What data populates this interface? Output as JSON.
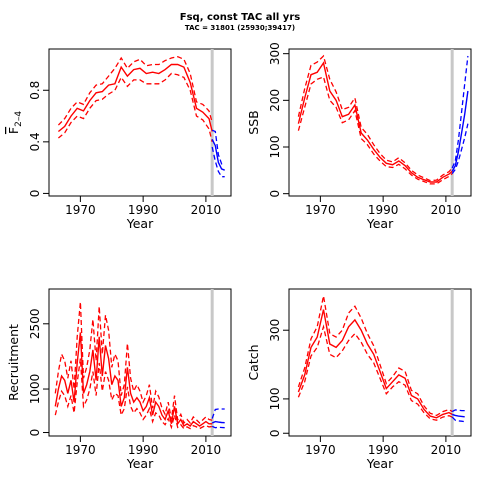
{
  "title": "Fsq, const TAC all yrs",
  "subtitle": "TAC = 31801 (25930;39417)",
  "chart_data": [
    {
      "type": "line",
      "panel": "F",
      "xlabel": "Year",
      "ylabel": "F2-4",
      "ylabel_main": "F",
      "ylabel_sub": "2–4",
      "xlim": [
        1960,
        2018
      ],
      "ylim": [
        -0.02,
        1.12
      ],
      "xticks": [
        1970,
        1990,
        2010
      ],
      "yticks": [
        0.0,
        0.4,
        0.8
      ],
      "vline": 2012,
      "series": [
        {
          "role": "historical",
          "color": "#ff0000",
          "years": [
            1963,
            1965,
            1967,
            1969,
            1971,
            1973,
            1975,
            1977,
            1979,
            1981,
            1983,
            1985,
            1987,
            1989,
            1991,
            1993,
            1995,
            1997,
            1999,
            2001,
            2003,
            2005,
            2007,
            2009,
            2011,
            2012
          ],
          "median": [
            0.48,
            0.52,
            0.6,
            0.66,
            0.64,
            0.72,
            0.78,
            0.79,
            0.84,
            0.85,
            0.98,
            0.91,
            0.96,
            0.97,
            0.93,
            0.94,
            0.93,
            0.96,
            1.0,
            1.0,
            0.98,
            0.86,
            0.66,
            0.63,
            0.58,
            0.48
          ],
          "low": [
            0.43,
            0.47,
            0.55,
            0.6,
            0.58,
            0.66,
            0.72,
            0.73,
            0.77,
            0.8,
            0.9,
            0.83,
            0.88,
            0.88,
            0.85,
            0.85,
            0.85,
            0.88,
            0.93,
            0.92,
            0.9,
            0.8,
            0.6,
            0.57,
            0.5,
            0.4
          ],
          "high": [
            0.53,
            0.58,
            0.66,
            0.71,
            0.69,
            0.78,
            0.84,
            0.85,
            0.91,
            0.97,
            1.05,
            0.97,
            1.02,
            1.04,
            0.99,
            1.0,
            1.0,
            1.03,
            1.05,
            1.06,
            1.04,
            0.93,
            0.71,
            0.69,
            0.64,
            0.55
          ]
        },
        {
          "role": "projection",
          "color": "#0000ff",
          "years": [
            2012,
            2013,
            2014,
            2015,
            2016
          ],
          "median": [
            0.42,
            0.37,
            0.24,
            0.19,
            0.18
          ],
          "low": [
            0.36,
            0.25,
            0.17,
            0.13,
            0.13
          ],
          "high": [
            0.49,
            0.48,
            0.3,
            0.23,
            0.23
          ]
        }
      ]
    },
    {
      "type": "line",
      "panel": "SSB",
      "xlabel": "Year",
      "ylabel": "SSB",
      "xlim": [
        1960,
        2018
      ],
      "ylim": [
        -5,
        310
      ],
      "xticks": [
        1970,
        1990,
        2010
      ],
      "yticks": [
        0,
        100,
        200,
        300
      ],
      "vline": 2012,
      "series": [
        {
          "role": "historical",
          "color": "#ff0000",
          "years": [
            1963,
            1965,
            1967,
            1969,
            1971,
            1973,
            1975,
            1977,
            1979,
            1981,
            1983,
            1985,
            1987,
            1989,
            1991,
            1993,
            1995,
            1997,
            1999,
            2001,
            2003,
            2005,
            2007,
            2009,
            2011,
            2012
          ],
          "median": [
            150,
            205,
            255,
            260,
            280,
            220,
            200,
            165,
            170,
            190,
            130,
            115,
            95,
            78,
            65,
            62,
            70,
            60,
            45,
            35,
            30,
            25,
            25,
            35,
            42,
            48
          ],
          "low": [
            135,
            185,
            235,
            245,
            250,
            200,
            185,
            152,
            158,
            178,
            118,
            105,
            85,
            70,
            58,
            56,
            63,
            53,
            40,
            31,
            26,
            21,
            21,
            30,
            37,
            43
          ],
          "high": [
            165,
            225,
            275,
            282,
            295,
            245,
            218,
            180,
            185,
            205,
            142,
            127,
            105,
            86,
            72,
            68,
            77,
            66,
            50,
            40,
            34,
            28,
            29,
            40,
            47,
            55
          ]
        },
        {
          "role": "projection",
          "color": "#0000ff",
          "years": [
            2012,
            2013,
            2014,
            2015,
            2016,
            2017
          ],
          "median": [
            48,
            60,
            90,
            130,
            170,
            220
          ],
          "low": [
            43,
            52,
            70,
            95,
            120,
            150
          ],
          "high": [
            55,
            70,
            115,
            175,
            235,
            295
          ]
        }
      ]
    },
    {
      "type": "line",
      "panel": "Recruitment",
      "xlabel": "Year",
      "ylabel": "Recruitment",
      "xlim": [
        1960,
        2018
      ],
      "ylim": [
        -80,
        3300
      ],
      "xticks": [
        1970,
        1990,
        2010
      ],
      "yticks": [
        0,
        1000,
        2500
      ],
      "vline": 2012,
      "series": [
        {
          "role": "historical",
          "color": "#ff0000",
          "years": [
            1962,
            1963,
            1964,
            1965,
            1966,
            1967,
            1968,
            1969,
            1970,
            1971,
            1972,
            1973,
            1974,
            1975,
            1976,
            1977,
            1978,
            1979,
            1980,
            1981,
            1982,
            1983,
            1984,
            1985,
            1986,
            1987,
            1988,
            1989,
            1990,
            1991,
            1992,
            1993,
            1994,
            1995,
            1996,
            1997,
            1998,
            1999,
            2000,
            2001,
            2002,
            2003,
            2004,
            2005,
            2006,
            2007,
            2008,
            2009,
            2010,
            2011,
            2012
          ],
          "median": [
            600,
            1000,
            1300,
            1200,
            900,
            1200,
            700,
            1600,
            2300,
            900,
            1100,
            1400,
            1900,
            1200,
            2200,
            1300,
            2000,
            1700,
            1100,
            1300,
            1200,
            600,
            800,
            1500,
            900,
            700,
            800,
            700,
            500,
            600,
            800,
            400,
            700,
            600,
            400,
            300,
            500,
            200,
            600,
            200,
            300,
            150,
            200,
            150,
            250,
            200,
            150,
            200,
            250,
            200,
            200
          ],
          "low": [
            400,
            700,
            950,
            850,
            600,
            850,
            450,
            1150,
            1700,
            600,
            750,
            1000,
            1400,
            850,
            1600,
            950,
            1400,
            1200,
            750,
            900,
            850,
            400,
            550,
            1050,
            600,
            450,
            550,
            450,
            300,
            400,
            550,
            250,
            450,
            400,
            250,
            180,
            320,
            120,
            400,
            120,
            180,
            90,
            130,
            90,
            160,
            130,
            90,
            130,
            160,
            130,
            140
          ],
          "high": [
            900,
            1400,
            1800,
            1650,
            1250,
            1650,
            1000,
            2200,
            3000,
            1250,
            1500,
            1900,
            2600,
            1650,
            2900,
            1800,
            2700,
            2350,
            1500,
            1800,
            1650,
            850,
            1100,
            2050,
            1250,
            950,
            1100,
            950,
            700,
            850,
            1100,
            560,
            950,
            820,
            560,
            420,
            700,
            300,
            850,
            290,
            420,
            220,
            300,
            220,
            360,
            290,
            220,
            290,
            360,
            300,
            280
          ]
        },
        {
          "role": "projection",
          "color": "#0000ff",
          "years": [
            2012,
            2013,
            2014,
            2015,
            2016
          ],
          "median": [
            220,
            250,
            240,
            230,
            225
          ],
          "low": [
            140,
            110,
            120,
            115,
            110
          ],
          "high": [
            320,
            530,
            540,
            540,
            540
          ]
        }
      ]
    },
    {
      "type": "line",
      "panel": "Catch",
      "xlabel": "Year",
      "ylabel": "Catch",
      "xlim": [
        1960,
        2018
      ],
      "ylim": [
        -8,
        420
      ],
      "xticks": [
        1970,
        1990,
        2010
      ],
      "yticks": [
        0,
        100,
        300
      ],
      "vline": 2012,
      "series": [
        {
          "role": "historical",
          "color": "#ff0000",
          "years": [
            1963,
            1965,
            1967,
            1969,
            1971,
            1973,
            1975,
            1977,
            1979,
            1981,
            1983,
            1985,
            1987,
            1989,
            1991,
            1993,
            1995,
            1997,
            1999,
            2001,
            2003,
            2005,
            2007,
            2009,
            2011,
            2012
          ],
          "median": [
            120,
            170,
            250,
            280,
            360,
            260,
            250,
            270,
            310,
            330,
            300,
            260,
            230,
            180,
            130,
            150,
            170,
            160,
            110,
            100,
            70,
            50,
            45,
            55,
            60,
            55
          ],
          "low": [
            105,
            150,
            225,
            250,
            310,
            230,
            220,
            240,
            270,
            290,
            265,
            230,
            205,
            160,
            115,
            135,
            150,
            140,
            95,
            85,
            60,
            42,
            38,
            47,
            51,
            47
          ],
          "high": [
            135,
            190,
            275,
            310,
            400,
            290,
            280,
            300,
            350,
            370,
            335,
            290,
            255,
            200,
            145,
            165,
            190,
            180,
            125,
            115,
            80,
            58,
            52,
            63,
            69,
            63
          ]
        },
        {
          "role": "projection",
          "color": "#0000ff",
          "years": [
            2012,
            2013,
            2014,
            2015,
            2016
          ],
          "median": [
            55,
            52,
            50,
            49,
            48
          ],
          "low": [
            47,
            38,
            36,
            35,
            34
          ],
          "high": [
            63,
            68,
            67,
            66,
            66
          ]
        }
      ]
    }
  ]
}
